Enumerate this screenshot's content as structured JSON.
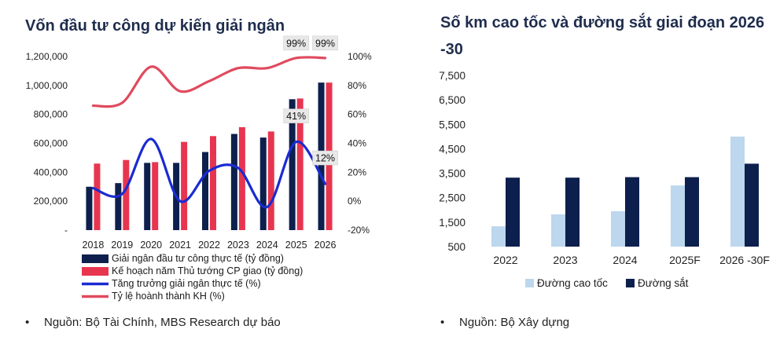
{
  "chart_data": [
    {
      "type": "bar",
      "title": "Vốn đầu tư công dự kiến giải ngân",
      "categories": [
        "2018",
        "2019",
        "2020",
        "2021",
        "2022",
        "2023",
        "2024",
        "2025",
        "2026"
      ],
      "y_ticks": [
        "-",
        "200,000",
        "400,000",
        "600,000",
        "800,000",
        "1,000,000",
        "1,200,000"
      ],
      "ylim": [
        0,
        1200000
      ],
      "y2_ticks": [
        "-20%",
        "0%",
        "20%",
        "40%",
        "60%",
        "80%",
        "100%"
      ],
      "y2lim": [
        -20,
        100
      ],
      "series": [
        {
          "name": "Giải ngân đầu tư công thực tế (tỷ đồng)",
          "kind": "bar",
          "color": "#0d1f4c",
          "values": [
            300000,
            325000,
            465000,
            465000,
            540000,
            665000,
            640000,
            905000,
            1020000
          ]
        },
        {
          "name": "Kế hoạch năm Thủ tướng CP giao (tỷ đồng)",
          "kind": "bar",
          "color": "#e8354f",
          "values": [
            460000,
            485000,
            470000,
            610000,
            650000,
            712000,
            682000,
            910000,
            1020000
          ]
        },
        {
          "name": "Tăng trưởng giải ngân thực tế (%)",
          "kind": "line",
          "axis": "y2",
          "color": "#1a2bd1",
          "values": [
            9,
            5,
            43,
            0,
            21,
            23,
            -4,
            41,
            12
          ]
        },
        {
          "name": "Tỷ lệ hoành thành KH (%)",
          "kind": "line",
          "axis": "y2",
          "color": "#e04a5e",
          "values": [
            66,
            68,
            93,
            76,
            83,
            92,
            92,
            99,
            99
          ]
        }
      ],
      "annotations": [
        {
          "label": "99%",
          "index": 7,
          "series": 3
        },
        {
          "label": "99%",
          "index": 8,
          "series": 3
        },
        {
          "label": "41%",
          "index": 7,
          "series": 2
        },
        {
          "label": "12%",
          "index": 8,
          "series": 2
        }
      ],
      "source": "Nguồn: Bộ Tài Chính, MBS Research dự báo",
      "legend_position": "bottom"
    },
    {
      "type": "bar",
      "title": "Số km cao tốc và đường sắt giai đoạn 2026 -30",
      "categories": [
        "2022",
        "2023",
        "2024",
        "2025F",
        "2026 -30F"
      ],
      "y_ticks": [
        "500",
        "1,500",
        "2,500",
        "3,500",
        "4,500",
        "5,500",
        "6,500",
        "7,500"
      ],
      "ylim": [
        500,
        7500
      ],
      "series": [
        {
          "name": "Đường cao tốc",
          "color": "#bcd7ee",
          "values": [
            1330,
            1820,
            1950,
            3000,
            5000
          ]
        },
        {
          "name": "Đường sắt",
          "color": "#0d1f4c",
          "values": [
            3320,
            3320,
            3340,
            3340,
            3890
          ]
        }
      ],
      "source": "Nguồn: Bộ Xây dựng",
      "legend_position": "bottom"
    }
  ],
  "bullet": "•"
}
